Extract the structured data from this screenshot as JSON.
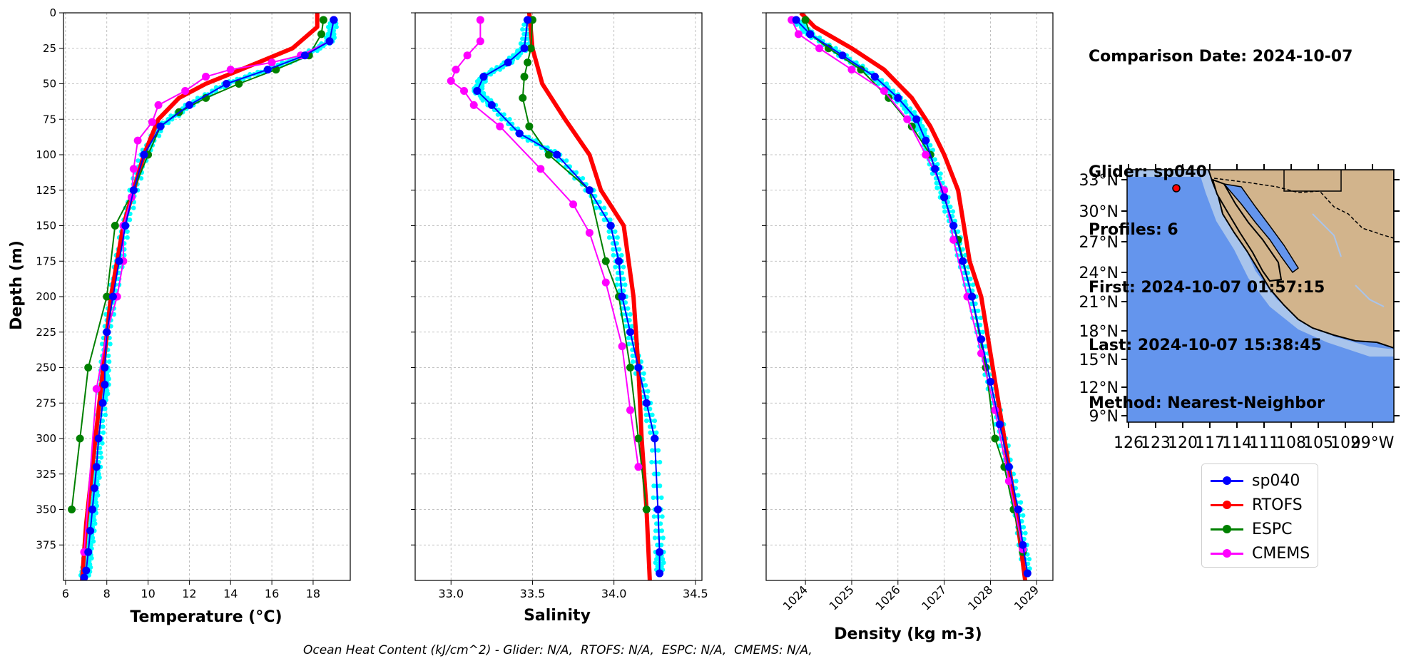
{
  "info": {
    "comparison_date": "Comparison Date: 2024-10-07",
    "glider": "Glider: sp040",
    "profiles": "Profiles: 6",
    "first": "First: 2024-10-07 01:57:15",
    "last": "Last: 2024-10-07 15:38:45",
    "method": "Method: Nearest-Neighbor"
  },
  "footer": "Ocean Heat Content (kJ/cm^2) - Glider: N/A,  RTOFS: N/A,  ESPC: N/A,  CMEMS: N/A,",
  "colors": {
    "sp040": "#0000ff",
    "RTOFS": "#ff0000",
    "ESPC": "#008000",
    "CMEMS": "#ff00ff",
    "glider_raw": "#00ffff",
    "ocean": "#6495ed",
    "land": "#d2b48c",
    "shelf": "#a8c4ec"
  },
  "legend": [
    {
      "name": "sp040",
      "color": "#0000ff"
    },
    {
      "name": "RTOFS",
      "color": "#ff0000"
    },
    {
      "name": "ESPC",
      "color": "#008000"
    },
    {
      "name": "CMEMS",
      "color": "#ff00ff"
    }
  ],
  "map": {
    "lat_labels": [
      "33°N",
      "30°N",
      "27°N",
      "24°N",
      "21°N",
      "18°N",
      "15°N",
      "12°N",
      "9°N"
    ],
    "lon_labels_text": "126123120117114111108105102 99°W",
    "lon_labels": [
      "126",
      "123",
      "120",
      "117",
      "114",
      "111",
      "108",
      "105",
      "102",
      "99°W"
    ],
    "glider_marker": {
      "lon": -121,
      "lat": 32.2
    }
  },
  "chart_data": [
    {
      "type": "line",
      "title": "",
      "xlabel": "Temperature (°C)",
      "ylabel": "Depth (m)",
      "xlim": [
        5.9,
        19.8
      ],
      "ylim": [
        400,
        0
      ],
      "y_inverted": true,
      "xticks": [
        6,
        8,
        10,
        12,
        14,
        16,
        18
      ],
      "yticks": [
        0,
        25,
        50,
        75,
        100,
        125,
        150,
        175,
        200,
        225,
        250,
        275,
        300,
        325,
        350,
        375
      ],
      "grid": true,
      "series": [
        {
          "name": "sp040",
          "color": "#0000ff",
          "lw": 2,
          "marker": true,
          "x": [
            19.0,
            18.8,
            17.6,
            15.8,
            13.8,
            12.0,
            10.6,
            9.8,
            9.3,
            8.9,
            8.6,
            8.3,
            8.0,
            7.9,
            7.9,
            7.8,
            7.6,
            7.5,
            7.4,
            7.3,
            7.2,
            7.1,
            7.0,
            6.9
          ],
          "y": [
            5,
            20,
            30,
            40,
            50,
            65,
            80,
            100,
            125,
            150,
            175,
            200,
            225,
            250,
            262,
            275,
            300,
            320,
            335,
            350,
            365,
            380,
            393,
            398
          ]
        },
        {
          "name": "RTOFS",
          "color": "#ff0000",
          "lw": 6,
          "marker": false,
          "x": [
            18.2,
            18.2,
            17.0,
            14.5,
            12.8,
            11.5,
            10.5,
            9.8,
            9.3,
            8.8,
            8.5,
            8.2,
            7.9,
            7.6,
            7.3,
            7.0,
            6.8
          ],
          "y": [
            0,
            10,
            25,
            40,
            50,
            60,
            75,
            100,
            125,
            150,
            175,
            200,
            240,
            280,
            320,
            360,
            400
          ]
        },
        {
          "name": "ESPC",
          "color": "#008000",
          "lw": 2,
          "marker": true,
          "x": [
            18.5,
            18.4,
            17.8,
            16.2,
            14.4,
            12.8,
            11.5,
            10.6,
            10.0,
            9.3,
            8.4,
            8.0,
            7.1,
            6.7,
            6.3
          ],
          "y": [
            5,
            15,
            30,
            40,
            50,
            60,
            70,
            80,
            100,
            125,
            150,
            200,
            250,
            300,
            350
          ]
        },
        {
          "name": "CMEMS",
          "color": "#ff00ff",
          "lw": 2,
          "marker": true,
          "x": [
            19.0,
            18.8,
            17.4,
            16.0,
            14.0,
            12.8,
            11.8,
            10.5,
            10.2,
            9.5,
            9.3,
            9.2,
            8.8,
            8.8,
            8.5,
            8.0,
            7.5,
            6.9
          ],
          "y": [
            5,
            20,
            30,
            35,
            40,
            45,
            55,
            65,
            77,
            90,
            110,
            130,
            150,
            175,
            200,
            225,
            265,
            380
          ]
        }
      ]
    },
    {
      "type": "line",
      "title": "",
      "xlabel": "Salinity",
      "ylabel": "",
      "xlim": [
        32.78,
        34.54
      ],
      "ylim": [
        400,
        0
      ],
      "y_inverted": true,
      "xticks": [
        33.0,
        33.5,
        34.0,
        34.5
      ],
      "grid": true,
      "series": [
        {
          "name": "sp040",
          "color": "#0000ff",
          "lw": 2,
          "marker": true,
          "x": [
            33.47,
            33.45,
            33.35,
            33.2,
            33.16,
            33.25,
            33.42,
            33.65,
            33.85,
            33.98,
            34.03,
            34.05,
            34.1,
            34.15,
            34.2,
            34.25,
            34.27,
            34.28,
            34.28
          ],
          "y": [
            5,
            25,
            35,
            45,
            55,
            65,
            85,
            100,
            125,
            150,
            175,
            200,
            225,
            250,
            275,
            300,
            350,
            380,
            395
          ]
        },
        {
          "name": "RTOFS",
          "color": "#ff0000",
          "lw": 6,
          "marker": false,
          "x": [
            33.48,
            33.5,
            33.56,
            33.7,
            33.85,
            33.92,
            34.06,
            34.12,
            34.15,
            34.17,
            34.2,
            34.22
          ],
          "y": [
            0,
            25,
            50,
            75,
            100,
            125,
            150,
            200,
            250,
            300,
            350,
            400
          ]
        },
        {
          "name": "ESPC",
          "color": "#008000",
          "lw": 2,
          "marker": true,
          "x": [
            33.5,
            33.49,
            33.47,
            33.45,
            33.44,
            33.48,
            33.6,
            33.85,
            33.95,
            34.03,
            34.1,
            34.15,
            34.2
          ],
          "y": [
            5,
            25,
            35,
            45,
            60,
            80,
            100,
            125,
            175,
            200,
            250,
            300,
            350
          ]
        },
        {
          "name": "CMEMS",
          "color": "#ff00ff",
          "lw": 2,
          "marker": true,
          "x": [
            33.18,
            33.18,
            33.1,
            33.03,
            33.0,
            33.08,
            33.14,
            33.3,
            33.55,
            33.75,
            33.85,
            33.95,
            34.05,
            34.1,
            34.15
          ],
          "y": [
            5,
            20,
            30,
            40,
            48,
            55,
            65,
            80,
            110,
            135,
            155,
            190,
            235,
            280,
            320
          ]
        }
      ]
    },
    {
      "type": "line",
      "title": "",
      "xlabel": "Density (kg m-3)",
      "ylabel": "",
      "xlim": [
        1023.15,
        1029.35
      ],
      "ylim": [
        400,
        0
      ],
      "y_inverted": true,
      "xticks": [
        1024,
        1025,
        1026,
        1027,
        1028,
        1029
      ],
      "grid": true,
      "series": [
        {
          "name": "sp040",
          "color": "#0000ff",
          "lw": 2,
          "marker": true,
          "x": [
            1023.8,
            1024.1,
            1024.8,
            1025.5,
            1026.0,
            1026.4,
            1026.6,
            1026.8,
            1027.0,
            1027.2,
            1027.4,
            1027.6,
            1027.8,
            1028.0,
            1028.2,
            1028.4,
            1028.6,
            1028.7,
            1028.8
          ],
          "y": [
            5,
            15,
            30,
            45,
            60,
            75,
            90,
            110,
            130,
            150,
            175,
            200,
            230,
            260,
            290,
            320,
            350,
            375,
            395
          ]
        },
        {
          "name": "RTOFS",
          "color": "#ff0000",
          "lw": 6,
          "marker": false,
          "x": [
            1023.9,
            1024.2,
            1025.0,
            1025.7,
            1026.3,
            1026.7,
            1027.0,
            1027.3,
            1027.55,
            1027.8,
            1028.05,
            1028.3,
            1028.55,
            1028.75
          ],
          "y": [
            0,
            10,
            25,
            40,
            60,
            80,
            100,
            125,
            175,
            200,
            250,
            300,
            350,
            400
          ]
        },
        {
          "name": "ESPC",
          "color": "#008000",
          "lw": 2,
          "marker": true,
          "x": [
            1024.0,
            1024.1,
            1024.5,
            1025.2,
            1025.8,
            1026.3,
            1026.7,
            1027.0,
            1027.3,
            1027.6,
            1027.9,
            1028.1,
            1028.3,
            1028.5,
            1028.7
          ],
          "y": [
            5,
            15,
            25,
            40,
            60,
            80,
            100,
            130,
            160,
            200,
            250,
            300,
            320,
            350,
            380
          ]
        },
        {
          "name": "CMEMS",
          "color": "#ff00ff",
          "lw": 2,
          "marker": true,
          "x": [
            1023.7,
            1023.85,
            1024.3,
            1025.0,
            1025.7,
            1026.2,
            1026.6,
            1027.0,
            1027.2,
            1027.5,
            1027.8,
            1028.1,
            1028.4,
            1028.7
          ],
          "y": [
            5,
            15,
            25,
            40,
            55,
            75,
            100,
            125,
            160,
            200,
            240,
            280,
            330,
            378
          ]
        }
      ]
    }
  ]
}
